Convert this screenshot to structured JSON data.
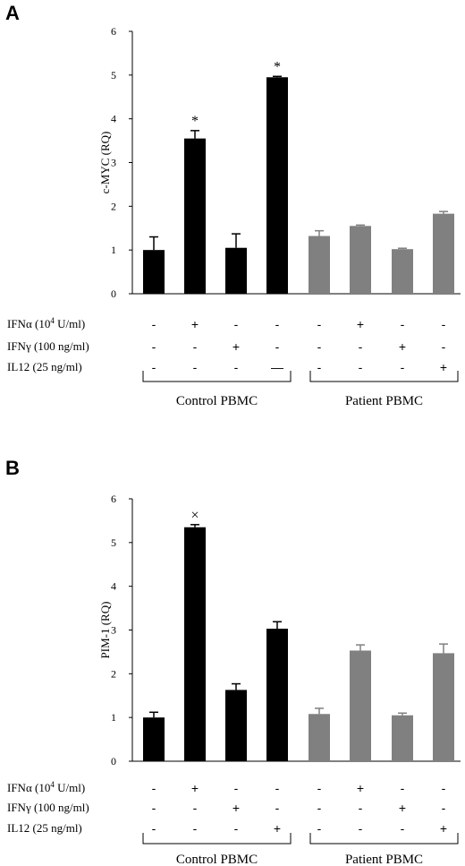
{
  "chart_data": [
    {
      "type": "bar",
      "panel": "A",
      "ylabel": "c-MYC (RQ)",
      "ylim": [
        0,
        6
      ],
      "yticks": [
        "0",
        "1",
        "2",
        "3",
        "4",
        "5",
        "6"
      ],
      "values": [
        1.0,
        3.55,
        1.05,
        4.95,
        1.32,
        1.55,
        1.02,
        1.83
      ],
      "errors": [
        0.3,
        0.18,
        0.32,
        0.02,
        0.12,
        0.02,
        0.02,
        0.05
      ],
      "significance": [
        "",
        "*",
        "",
        "*",
        "",
        "",
        "",
        ""
      ],
      "colors": [
        "#000000",
        "#000000",
        "#000000",
        "#000000",
        "#808080",
        "#808080",
        "#808080",
        "#808080"
      ],
      "treatments": [
        {
          "label_main": "IFNα (10",
          "label_sup": "4",
          "label_rest": " U/ml)",
          "signs": [
            "-",
            "+",
            "-",
            "-",
            "-",
            "+",
            "-",
            "-"
          ]
        },
        {
          "label_main": "IFNγ (100 ng/ml)",
          "label_sup": "",
          "label_rest": "",
          "signs": [
            "-",
            "-",
            "+",
            "-",
            "-",
            "-",
            "+",
            "-"
          ]
        },
        {
          "label_main": "IL12 (25 ng/ml)",
          "label_sup": "",
          "label_rest": "",
          "signs": [
            "-",
            "-",
            "-",
            "—",
            "-",
            "-",
            "-",
            "+"
          ]
        }
      ],
      "groups": [
        "Control PBMC",
        "Patient PBMC"
      ]
    },
    {
      "type": "bar",
      "panel": "B",
      "ylabel": "PIM-1 (RQ)",
      "ylim": [
        0,
        6
      ],
      "yticks": [
        "0",
        "1",
        "2",
        "3",
        "4",
        "5",
        "6"
      ],
      "values": [
        1.0,
        5.35,
        1.63,
        3.03,
        1.08,
        2.53,
        1.05,
        2.47
      ],
      "errors": [
        0.12,
        0.06,
        0.14,
        0.16,
        0.13,
        0.13,
        0.05,
        0.21
      ],
      "significance": [
        "",
        "×",
        "",
        "",
        "",
        "",
        "",
        ""
      ],
      "colors": [
        "#000000",
        "#000000",
        "#000000",
        "#000000",
        "#808080",
        "#808080",
        "#808080",
        "#808080"
      ],
      "treatments": [
        {
          "label_main": "IFNα (10",
          "label_sup": "4",
          "label_rest": " U/ml)",
          "signs": [
            "-",
            "+",
            "-",
            "-",
            "-",
            "+",
            "-",
            "-"
          ]
        },
        {
          "label_main": "IFNγ (100 ng/ml)",
          "label_sup": "",
          "label_rest": "",
          "signs": [
            "-",
            "-",
            "+",
            "-",
            "-",
            "-",
            "+",
            "-"
          ]
        },
        {
          "label_main": "IL12 (25 ng/ml)",
          "label_sup": "",
          "label_rest": "",
          "signs": [
            "-",
            "-",
            "-",
            "+",
            "-",
            "-",
            "-",
            "+"
          ]
        }
      ],
      "groups": [
        "Control PBMC",
        "Patient PBMC"
      ]
    }
  ]
}
